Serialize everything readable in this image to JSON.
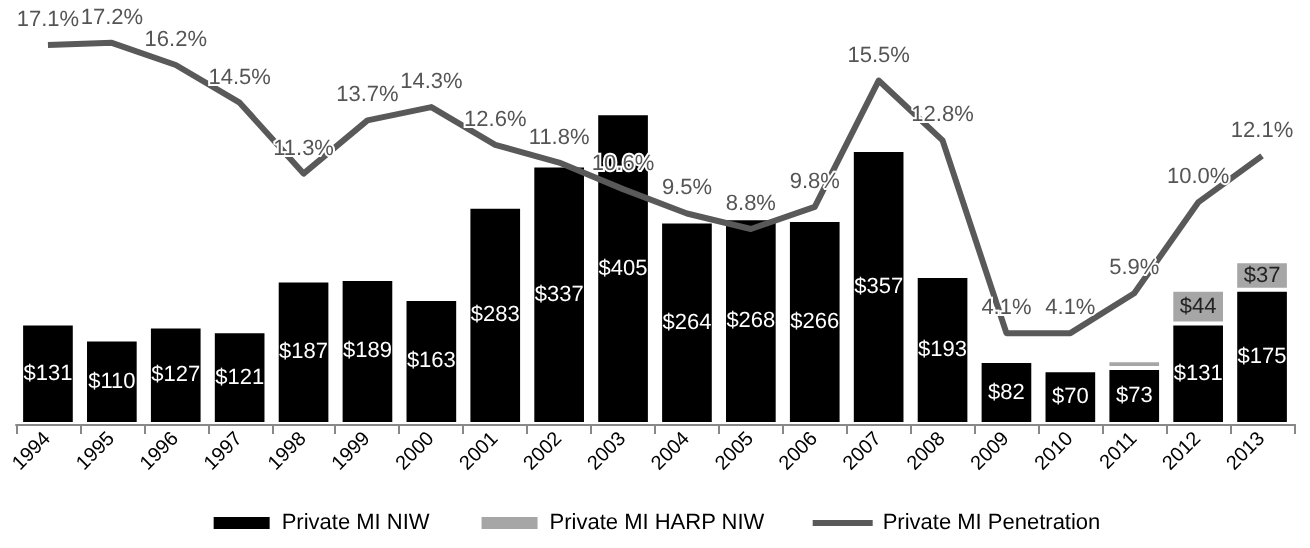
{
  "chart_data": {
    "type": "bar",
    "stacked": true,
    "categories": [
      "1994",
      "1995",
      "1996",
      "1997",
      "1998",
      "1999",
      "2000",
      "2001",
      "2002",
      "2003",
      "2004",
      "2005",
      "2006",
      "2007",
      "2008",
      "2009",
      "2010",
      "2011",
      "2012",
      "2013"
    ],
    "series": [
      {
        "name": "Private MI NIW",
        "color": "#000000",
        "values": [
          131,
          110,
          127,
          121,
          187,
          189,
          163,
          283,
          337,
          405,
          264,
          268,
          266,
          357,
          193,
          82,
          70,
          73,
          131,
          175
        ],
        "value_labels": [
          "$131",
          "$110",
          "$127",
          "$121",
          "$187",
          "$189",
          "$163",
          "$283",
          "$337",
          "$405",
          "$264",
          "$268",
          "$266",
          "$357",
          "$193",
          "$82",
          "$70",
          "$73",
          "$131",
          "$175"
        ]
      },
      {
        "name": "Private MI HARP NIW",
        "color": "#a6a6a6",
        "values": [
          null,
          null,
          null,
          null,
          null,
          null,
          null,
          null,
          null,
          null,
          null,
          null,
          null,
          null,
          null,
          null,
          null,
          10,
          44,
          37
        ],
        "value_labels": [
          null,
          null,
          null,
          null,
          null,
          null,
          null,
          null,
          null,
          null,
          null,
          null,
          null,
          null,
          null,
          null,
          null,
          null,
          "$44",
          "$37"
        ]
      },
      {
        "name": "Private MI Penetration",
        "type": "line",
        "axis": "y2",
        "color": "#595959",
        "marker": "none",
        "values": [
          17.1,
          17.2,
          16.2,
          14.5,
          11.3,
          13.7,
          14.3,
          12.6,
          11.8,
          10.6,
          9.5,
          8.8,
          9.8,
          15.5,
          12.8,
          4.1,
          4.1,
          5.9,
          10.0,
          12.1
        ],
        "value_labels": [
          "17.1%",
          "17.2%",
          "16.2%",
          "14.5%",
          "11.3%",
          "13.7%",
          "14.3%",
          "12.6%",
          "11.8%",
          "10.6%",
          "9.5%",
          "8.8%",
          "9.8%",
          "15.5%",
          "12.8%",
          "4.1%",
          "4.1%",
          "5.9%",
          "10.0%",
          "12.1%"
        ]
      }
    ],
    "tick_labels": "x",
    "grid": false,
    "legend": "bottom"
  }
}
